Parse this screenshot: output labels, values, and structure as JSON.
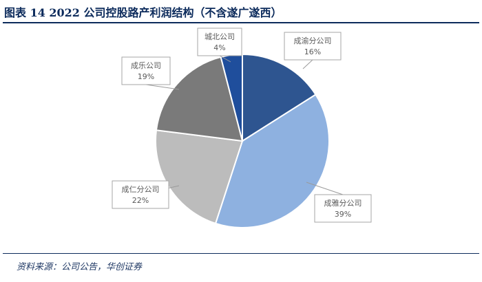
{
  "header": {
    "title": "图表 14   2022 公司控股路产利润结构（不含遂广遂西）"
  },
  "footer": {
    "source": "资料来源：公司公告，华创证券"
  },
  "chart_data": {
    "type": "pie",
    "start_angle_deg": 0,
    "direction": "clockwise",
    "slices": [
      {
        "label": "成渝分公司",
        "value": 16,
        "value_label": "16%",
        "color": "#2e5590"
      },
      {
        "label": "成雅分公司",
        "value": 39,
        "value_label": "39%",
        "color": "#8eb1e0"
      },
      {
        "label": "成仁分公司",
        "value": 22,
        "value_label": "22%",
        "color": "#bcbcbc"
      },
      {
        "label": "成乐公司",
        "value": 19,
        "value_label": "19%",
        "color": "#7a7a7a"
      },
      {
        "label": "城北公司",
        "value": 4,
        "value_label": "4%",
        "color": "#1f4e9c"
      }
    ],
    "legend": "none",
    "data_labels": "callout"
  }
}
